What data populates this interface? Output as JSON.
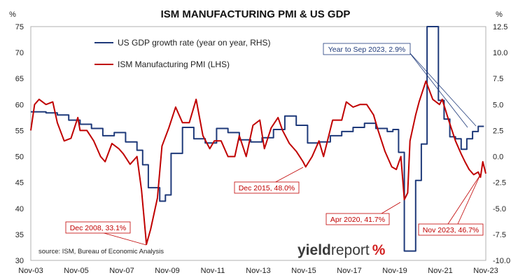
{
  "chart_data": {
    "type": "line",
    "title": "ISM MANUFACTURING PMI & US GDP",
    "left_unit": "%",
    "right_unit": "%",
    "y_left": {
      "min": 30,
      "max": 75,
      "ticks": [
        "30",
        "35",
        "40",
        "45",
        "50",
        "55",
        "60",
        "65",
        "70",
        "75"
      ]
    },
    "y_right": {
      "min": -10,
      "max": 12.5,
      "ticks": [
        "-10.0",
        "-7.5",
        "-5.0",
        "-2.5",
        "0.0",
        "2.5",
        "5.0",
        "7.5",
        "10.0",
        "12.5"
      ]
    },
    "x_range": [
      2003.833,
      2023.833
    ],
    "x_ticks": [
      {
        "label": "Nov-03",
        "x": 2003.833
      },
      {
        "label": "Nov-05",
        "x": 2005.833
      },
      {
        "label": "Nov-07",
        "x": 2007.833
      },
      {
        "label": "Nov-09",
        "x": 2009.833
      },
      {
        "label": "Nov-11",
        "x": 2011.833
      },
      {
        "label": "Nov-13",
        "x": 2013.833
      },
      {
        "label": "Nov-15",
        "x": 2015.833
      },
      {
        "label": "Nov-17",
        "x": 2017.833
      },
      {
        "label": "Nov-19",
        "x": 2019.833
      },
      {
        "label": "Nov-21",
        "x": 2021.833
      },
      {
        "label": "Nov-23",
        "x": 2023.833
      }
    ],
    "series": [
      {
        "name": "US GDP growth rate (year on year, RHS)",
        "axis": "right",
        "color": "#1f3a7a",
        "points": [
          [
            2003.833,
            4.3
          ],
          [
            2004.0,
            4.3
          ],
          [
            2004.5,
            4.2
          ],
          [
            2005.0,
            4.0
          ],
          [
            2005.5,
            3.5
          ],
          [
            2006.0,
            3.1
          ],
          [
            2006.5,
            2.7
          ],
          [
            2007.0,
            2.0
          ],
          [
            2007.5,
            2.3
          ],
          [
            2008.0,
            1.4
          ],
          [
            2008.5,
            0.6
          ],
          [
            2008.75,
            -0.8
          ],
          [
            2009.0,
            -3.0
          ],
          [
            2009.5,
            -4.3
          ],
          [
            2009.75,
            -3.7
          ],
          [
            2010.0,
            0.3
          ],
          [
            2010.5,
            2.8
          ],
          [
            2011.0,
            1.7
          ],
          [
            2011.5,
            1.3
          ],
          [
            2012.0,
            2.7
          ],
          [
            2012.5,
            2.3
          ],
          [
            2013.0,
            1.6
          ],
          [
            2013.5,
            1.4
          ],
          [
            2014.0,
            1.8
          ],
          [
            2014.5,
            2.6
          ],
          [
            2015.0,
            3.9
          ],
          [
            2015.5,
            3.0
          ],
          [
            2016.0,
            1.3
          ],
          [
            2016.5,
            1.4
          ],
          [
            2017.0,
            2.0
          ],
          [
            2017.5,
            2.4
          ],
          [
            2018.0,
            2.8
          ],
          [
            2018.5,
            3.2
          ],
          [
            2019.0,
            2.7
          ],
          [
            2019.5,
            2.4
          ],
          [
            2019.75,
            2.6
          ],
          [
            2020.0,
            0.4
          ],
          [
            2020.25,
            -9.1
          ],
          [
            2020.5,
            -9.1
          ],
          [
            2020.75,
            -2.3
          ],
          [
            2021.0,
            1.2
          ],
          [
            2021.25,
            12.5
          ],
          [
            2021.5,
            12.5
          ],
          [
            2021.75,
            5.4
          ],
          [
            2022.0,
            3.6
          ],
          [
            2022.25,
            1.9
          ],
          [
            2022.5,
            1.7
          ],
          [
            2022.75,
            0.7
          ],
          [
            2023.0,
            1.7
          ],
          [
            2023.25,
            2.4
          ],
          [
            2023.5,
            2.9
          ],
          [
            2023.75,
            2.9
          ]
        ]
      },
      {
        "name": "ISM Manufacturing PMI (LHS)",
        "axis": "left",
        "color": "#c00000",
        "points": [
          [
            2003.833,
            55
          ],
          [
            2004.0,
            60
          ],
          [
            2004.2,
            61
          ],
          [
            2004.5,
            60
          ],
          [
            2004.8,
            60.5
          ],
          [
            2005.0,
            56.5
          ],
          [
            2005.3,
            53
          ],
          [
            2005.6,
            53.5
          ],
          [
            2005.9,
            57.5
          ],
          [
            2006.0,
            55
          ],
          [
            2006.3,
            55
          ],
          [
            2006.6,
            53
          ],
          [
            2006.9,
            50
          ],
          [
            2007.1,
            49
          ],
          [
            2007.4,
            52.5
          ],
          [
            2007.7,
            51.5
          ],
          [
            2007.9,
            50.5
          ],
          [
            2008.2,
            48.5
          ],
          [
            2008.5,
            50
          ],
          [
            2008.7,
            43.5
          ],
          [
            2008.917,
            33.1
          ],
          [
            2009.1,
            36
          ],
          [
            2009.4,
            42
          ],
          [
            2009.6,
            52
          ],
          [
            2009.9,
            55.5
          ],
          [
            2010.2,
            59.5
          ],
          [
            2010.5,
            56.5
          ],
          [
            2010.8,
            56.5
          ],
          [
            2011.1,
            61
          ],
          [
            2011.4,
            54
          ],
          [
            2011.7,
            51.5
          ],
          [
            2011.9,
            53
          ],
          [
            2012.2,
            53
          ],
          [
            2012.5,
            50
          ],
          [
            2012.8,
            50
          ],
          [
            2013.0,
            54
          ],
          [
            2013.3,
            50
          ],
          [
            2013.6,
            56
          ],
          [
            2013.9,
            57
          ],
          [
            2014.1,
            51.5
          ],
          [
            2014.4,
            55.5
          ],
          [
            2014.7,
            57.5
          ],
          [
            2014.9,
            55
          ],
          [
            2015.2,
            52.5
          ],
          [
            2015.5,
            51
          ],
          [
            2015.8,
            49
          ],
          [
            2015.917,
            48.0
          ],
          [
            2016.2,
            50
          ],
          [
            2016.5,
            53
          ],
          [
            2016.7,
            50
          ],
          [
            2016.9,
            53.5
          ],
          [
            2017.1,
            57
          ],
          [
            2017.5,
            57
          ],
          [
            2017.7,
            60.5
          ],
          [
            2018.0,
            59.5
          ],
          [
            2018.3,
            60
          ],
          [
            2018.6,
            60
          ],
          [
            2018.9,
            58
          ],
          [
            2019.1,
            55
          ],
          [
            2019.4,
            51
          ],
          [
            2019.7,
            48
          ],
          [
            2019.9,
            47.5
          ],
          [
            2020.1,
            50
          ],
          [
            2020.25,
            41.7
          ],
          [
            2020.4,
            43
          ],
          [
            2020.5,
            53
          ],
          [
            2020.75,
            58
          ],
          [
            2020.9,
            60.5
          ],
          [
            2021.2,
            64.5
          ],
          [
            2021.5,
            61
          ],
          [
            2021.8,
            60
          ],
          [
            2021.917,
            61
          ],
          [
            2022.2,
            57
          ],
          [
            2022.5,
            53
          ],
          [
            2022.75,
            50.5
          ],
          [
            2022.917,
            49
          ],
          [
            2023.1,
            47.5
          ],
          [
            2023.3,
            46.5
          ],
          [
            2023.5,
            47
          ],
          [
            2023.6,
            46
          ],
          [
            2023.7,
            49
          ],
          [
            2023.833,
            46.7
          ]
        ]
      }
    ],
    "annotations": [
      {
        "text": "Year to Sep 2023, 2.9%",
        "color": "#1f3a7a"
      },
      {
        "text": "Dec 2008, 33.1%",
        "color": "#c00000"
      },
      {
        "text": "Dec 2015, 48.0%",
        "color": "#c00000"
      },
      {
        "text": "Apr 2020, 41.7%",
        "color": "#c00000"
      },
      {
        "text": "Nov 2023, 46.7%",
        "color": "#c00000"
      }
    ],
    "source": "source: ISM, Bureau of Economic Analysis",
    "brand": {
      "part1": "yield",
      "part2": "report",
      "part3": "%"
    }
  }
}
